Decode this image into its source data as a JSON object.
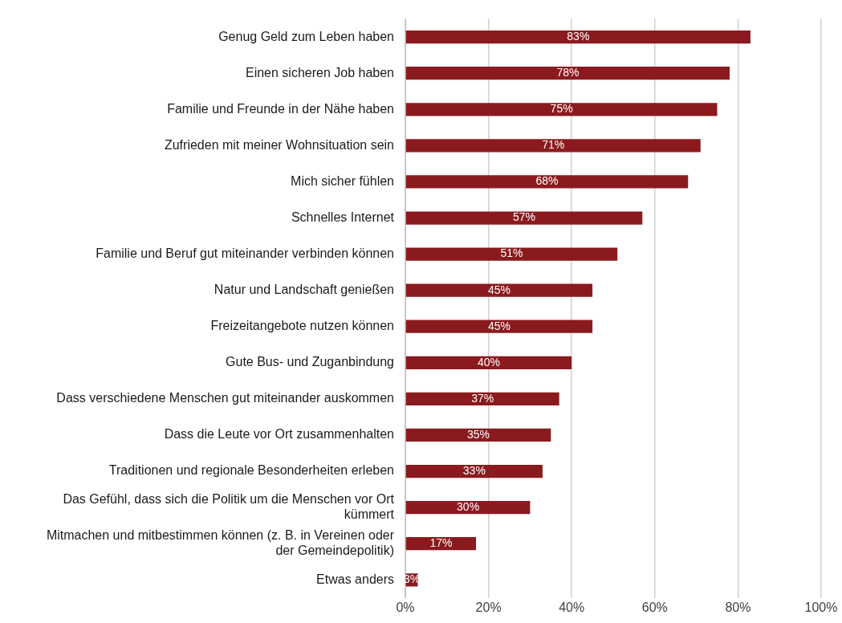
{
  "chart_data": {
    "type": "bar",
    "orientation": "horizontal",
    "categories": [
      "Genug Geld zum Leben haben",
      "Einen sicheren Job haben",
      "Familie und Freunde in der Nähe haben",
      "Zufrieden mit meiner Wohnsituation sein",
      "Mich sicher fühlen",
      "Schnelles Internet",
      "Familie und Beruf gut miteinander verbinden können",
      "Natur und Landschaft genießen",
      "Freizeitangebote nutzen können",
      "Gute Bus- und Zuganbindung",
      "Dass verschiedene Menschen gut miteinander auskommen",
      "Dass die Leute vor Ort zusammenhalten",
      "Traditionen und regionale Besonderheiten erleben",
      "Das Gefühl, dass sich die Politik um die Menschen vor Ort kümmert",
      "Mitmachen und mitbestimmen können (z. B. in Vereinen oder der Gemeindepolitik)",
      "Etwas anders"
    ],
    "values": [
      83,
      78,
      75,
      71,
      68,
      57,
      51,
      45,
      45,
      40,
      37,
      35,
      33,
      30,
      17,
      3
    ],
    "value_labels": [
      "83%",
      "78%",
      "75%",
      "71%",
      "68%",
      "57%",
      "51%",
      "45%",
      "45%",
      "40%",
      "37%",
      "35%",
      "33%",
      "30%",
      "17%",
      "3%"
    ],
    "color": "#8b1a1e",
    "xlim": [
      0,
      100
    ],
    "xticks": [
      {
        "value": 0,
        "label": "0%"
      },
      {
        "value": 20,
        "label": "20%"
      },
      {
        "value": 40,
        "label": "40%"
      },
      {
        "value": 60,
        "label": "60%"
      },
      {
        "value": 80,
        "label": "80%"
      },
      {
        "value": 100,
        "label": "100%"
      }
    ],
    "grid": "x",
    "legend": false
  }
}
